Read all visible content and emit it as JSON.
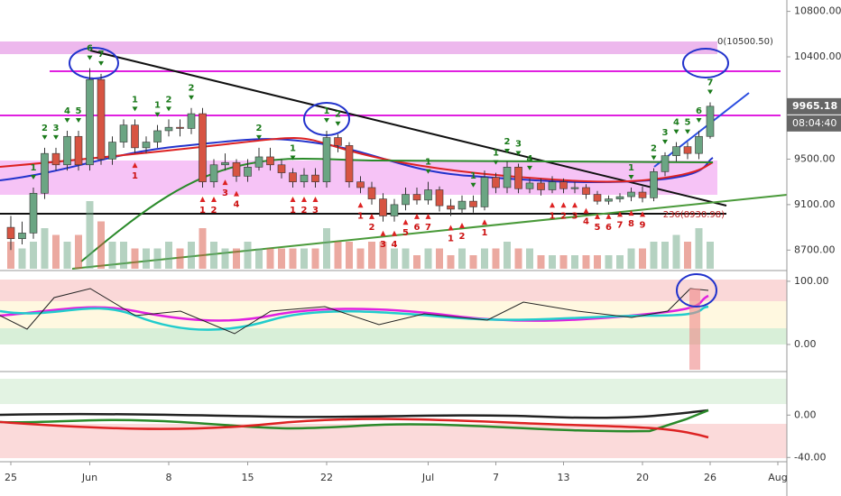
{
  "chart_data": {
    "type": "candlestick",
    "open": [
      8900,
      8800,
      8850,
      9200,
      9550,
      9450,
      9700,
      9450,
      10200,
      9500,
      9650,
      9800,
      9600,
      9650,
      9750,
      9780,
      9770,
      9900,
      9300,
      9450,
      9470,
      9350,
      9430,
      9520,
      9450,
      9380,
      9300,
      9360,
      9300,
      9690,
      9620,
      9300,
      9250,
      9150,
      9000,
      9100,
      9190,
      9140,
      9230,
      9090,
      9060,
      9130,
      9080,
      9340,
      9250,
      9430,
      9240,
      9290,
      9230,
      9300,
      9240,
      9250,
      9190,
      9130,
      9150,
      9170,
      9210,
      9160,
      9390,
      9530,
      9610,
      9550,
      9700
    ],
    "high": [
      9000,
      8950,
      9250,
      9600,
      9600,
      9750,
      9750,
      10300,
      10250,
      9700,
      9850,
      9850,
      9700,
      9800,
      9850,
      9850,
      9950,
      9950,
      9500,
      9550,
      9500,
      9500,
      9600,
      9600,
      9500,
      9420,
      9420,
      9420,
      9750,
      9720,
      9650,
      9350,
      9300,
      9200,
      9150,
      9250,
      9250,
      9300,
      9260,
      9150,
      9180,
      9180,
      9400,
      9380,
      9480,
      9460,
      9330,
      9330,
      9350,
      9330,
      9300,
      9280,
      9220,
      9180,
      9200,
      9250,
      9260,
      9420,
      9560,
      9650,
      9650,
      9750,
      10000
    ],
    "low": [
      8700,
      8750,
      8800,
      9150,
      9400,
      9400,
      9400,
      9400,
      9450,
      9450,
      9600,
      9550,
      9550,
      9600,
      9700,
      9700,
      9720,
      9250,
      9250,
      9400,
      9300,
      9300,
      9400,
      9400,
      9330,
      9250,
      9250,
      9250,
      9250,
      9560,
      9250,
      9200,
      9100,
      8950,
      8950,
      9050,
      9100,
      9100,
      9040,
      9000,
      9020,
      9030,
      9050,
      9200,
      9200,
      9200,
      9200,
      9180,
      9200,
      9200,
      9200,
      9150,
      9100,
      9100,
      9120,
      9130,
      9120,
      9130,
      9350,
      9480,
      9500,
      9500,
      9680
    ],
    "close": [
      8800,
      8850,
      9200,
      9550,
      9450,
      9700,
      9450,
      10200,
      9500,
      9650,
      9800,
      9600,
      9650,
      9750,
      9780,
      9770,
      9900,
      9300,
      9450,
      9470,
      9350,
      9430,
      9520,
      9450,
      9380,
      9300,
      9360,
      9300,
      9690,
      9620,
      9300,
      9250,
      9150,
      9000,
      9100,
      9190,
      9140,
      9230,
      9090,
      9060,
      9130,
      9080,
      9340,
      9250,
      9430,
      9240,
      9290,
      9230,
      9300,
      9240,
      9250,
      9190,
      9130,
      9150,
      9170,
      9210,
      9160,
      9390,
      9530,
      9610,
      9550,
      9700,
      9965.18
    ],
    "volume": [
      4,
      3,
      4,
      6,
      5,
      4,
      5,
      10,
      7,
      4,
      4,
      3,
      3,
      3,
      4,
      3,
      4,
      6,
      4,
      3,
      3,
      4,
      3,
      3,
      3,
      3,
      3,
      3,
      6,
      4,
      4,
      3,
      4,
      4,
      3,
      3,
      2,
      3,
      3,
      2,
      3,
      2,
      3,
      3,
      4,
      3,
      3,
      2,
      2,
      2,
      2,
      2,
      2,
      2,
      2,
      3,
      3,
      4,
      4,
      5,
      4,
      6,
      4
    ],
    "up_color": "#6ba583",
    "down_color": "#d75442",
    "ylim": [
      8520,
      10900
    ],
    "yticks": [
      {
        "value": 10800,
        "label": "10800.00"
      },
      {
        "value": 10400,
        "label": "10400.00"
      },
      {
        "value": 9500,
        "label": "9500.00"
      },
      {
        "value": 9100,
        "label": "9100.00"
      },
      {
        "value": 8700,
        "label": "8700.00"
      }
    ],
    "last_price": {
      "value": 9965.18,
      "label": "9965.18"
    },
    "countdown": "08:04:40",
    "fib_top": "0(10500.50)",
    "fib_low": "236(8930.98)",
    "xlim": [
      -1,
      69
    ],
    "xticks": [
      {
        "value": 0,
        "label": "25"
      },
      {
        "value": 7,
        "label": "Jun"
      },
      {
        "value": 14,
        "label": "8"
      },
      {
        "value": 21,
        "label": "15"
      },
      {
        "value": 28,
        "label": "22"
      },
      {
        "value": 37,
        "label": "Jul"
      },
      {
        "value": 43,
        "label": "7"
      },
      {
        "value": 49,
        "label": "13"
      },
      {
        "value": 56,
        "label": "20"
      },
      {
        "value": 62,
        "label": "26"
      },
      {
        "value": 68,
        "label": "Aug"
      }
    ],
    "td_up": [
      {
        "index": 2,
        "label": "1"
      },
      {
        "index": 3,
        "label": "2"
      },
      {
        "index": 4,
        "label": "3"
      },
      {
        "index": 5,
        "label": "4"
      },
      {
        "index": 6,
        "label": "5"
      },
      {
        "index": 7,
        "label": "6"
      },
      {
        "index": 8,
        "label": "7"
      },
      {
        "index": 11,
        "label": "1"
      },
      {
        "index": 13,
        "label": "1"
      },
      {
        "index": 14,
        "label": "2"
      },
      {
        "index": 16,
        "label": "2"
      },
      {
        "index": 22,
        "label": "2"
      },
      {
        "index": 25,
        "label": "1"
      },
      {
        "index": 28,
        "label": "1"
      },
      {
        "index": 29,
        "label": "2"
      },
      {
        "index": 37,
        "label": "1"
      },
      {
        "index": 41,
        "label": "1"
      },
      {
        "index": 43,
        "label": "1"
      },
      {
        "index": 44,
        "label": "2"
      },
      {
        "index": 45,
        "label": "3"
      },
      {
        "index": 46,
        "label": "4"
      },
      {
        "index": 55,
        "label": "1"
      },
      {
        "index": 57,
        "label": "2"
      },
      {
        "index": 58,
        "label": "3"
      },
      {
        "index": 59,
        "label": "4"
      },
      {
        "index": 60,
        "label": "5"
      },
      {
        "index": 61,
        "label": "6"
      },
      {
        "index": 62,
        "label": "7"
      }
    ],
    "td_down": [
      {
        "index": 11,
        "label": "1"
      },
      {
        "index": 17,
        "label": "1"
      },
      {
        "index": 18,
        "label": "2"
      },
      {
        "index": 19,
        "label": "3"
      },
      {
        "index": 20,
        "label": "4"
      },
      {
        "index": 25,
        "label": "1"
      },
      {
        "index": 26,
        "label": "2"
      },
      {
        "index": 27,
        "label": "3"
      },
      {
        "index": 31,
        "label": "1"
      },
      {
        "index": 32,
        "label": "2"
      },
      {
        "index": 33,
        "label": "3"
      },
      {
        "index": 34,
        "label": "4"
      },
      {
        "index": 35,
        "label": "5"
      },
      {
        "index": 36,
        "label": "6"
      },
      {
        "index": 37,
        "label": "7"
      },
      {
        "index": 39,
        "label": "1"
      },
      {
        "index": 40,
        "label": "2"
      },
      {
        "index": 42,
        "label": "1"
      },
      {
        "index": 48,
        "label": "1"
      },
      {
        "index": 49,
        "label": "2"
      },
      {
        "index": 50,
        "label": "3"
      },
      {
        "index": 51,
        "label": "4"
      },
      {
        "index": 52,
        "label": "5"
      },
      {
        "index": 53,
        "label": "6"
      },
      {
        "index": 54,
        "label": "7"
      },
      {
        "index": 55,
        "label": "8"
      },
      {
        "index": 56,
        "label": "9"
      }
    ],
    "panels": [
      {
        "ylim": [
          -40,
          117
        ],
        "yticks": [
          {
            "value": 100,
            "label": "100.00"
          },
          {
            "value": 0,
            "label": "0.00"
          }
        ]
      },
      {
        "ylim": [
          -44,
          36
        ],
        "yticks": [
          {
            "value": 0,
            "label": "0.00"
          },
          {
            "value": -40,
            "label": "-40.00"
          }
        ]
      }
    ]
  }
}
